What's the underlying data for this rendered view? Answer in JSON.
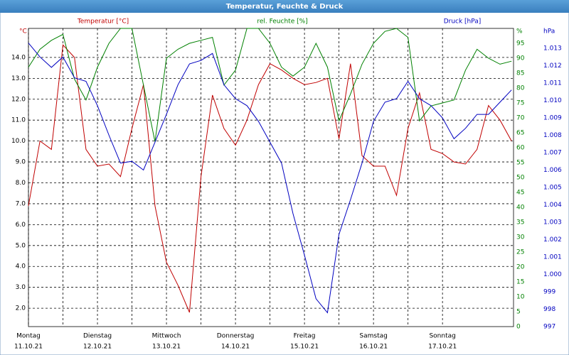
{
  "chart_data": {
    "type": "line",
    "title": "Temperatur, Feuchte & Druck",
    "x": [
      0,
      4,
      8,
      12,
      16,
      20,
      24,
      28,
      32,
      36,
      40,
      44,
      48,
      52,
      56,
      60,
      64,
      68,
      72,
      76,
      80,
      84,
      88,
      92,
      96,
      100,
      104,
      108,
      112,
      116,
      120,
      124,
      128,
      132,
      136,
      140,
      144,
      148,
      152,
      156,
      160,
      164,
      168
    ],
    "xlim": [
      0,
      168.7
    ],
    "xticks": [
      {
        "value": 0,
        "label": "Montag",
        "date": "11.10.21"
      },
      {
        "value": 24,
        "label": "Dienstag",
        "date": "12.10.21"
      },
      {
        "value": 48,
        "label": "Mittwoch",
        "date": "13.10.21"
      },
      {
        "value": 72,
        "label": "Donnerstag",
        "date": "14.10.21"
      },
      {
        "value": 96,
        "label": "Freitag",
        "date": "15.10.21"
      },
      {
        "value": 120,
        "label": "Samstag",
        "date": "16.10.21"
      },
      {
        "value": 144,
        "label": "Sonntag",
        "date": "17.10.21"
      }
    ],
    "series": [
      {
        "name": "Temperatur [°C]",
        "color": "#c00000",
        "axis": "y",
        "values": [
          6.9,
          10.0,
          9.6,
          14.6,
          14.0,
          9.6,
          8.8,
          8.9,
          8.3,
          10.6,
          12.7,
          6.9,
          4.2,
          3.1,
          1.8,
          8.3,
          12.2,
          10.6,
          9.8,
          11.0,
          12.7,
          13.7,
          13.4,
          13.0,
          12.7,
          12.8,
          13.0,
          10.1,
          13.7,
          9.3,
          8.8,
          8.8,
          7.4,
          10.6,
          12.3,
          9.6,
          9.4,
          9.0,
          8.9,
          9.6,
          11.7,
          11.0,
          10.0
        ]
      },
      {
        "name": "rel. Feuchte [%]",
        "color": "#008000",
        "axis": "y2",
        "values": [
          87,
          93,
          96,
          98,
          83,
          76,
          87,
          95,
          100,
          100,
          81,
          62,
          90,
          93,
          95,
          96,
          97,
          81,
          86,
          100,
          100,
          95,
          87,
          84,
          87,
          95,
          87,
          69,
          78,
          88,
          95,
          99,
          100,
          97,
          69,
          74,
          75,
          76,
          86,
          93,
          90,
          88,
          89
        ]
      },
      {
        "name": "Druck [hPa]",
        "color": "#0000c0",
        "axis": "y3",
        "values": [
          1013.3,
          1012.5,
          1011.9,
          1012.5,
          1011.3,
          1011.1,
          1009.7,
          1008.0,
          1006.4,
          1006.5,
          1006.0,
          1007.6,
          1009.2,
          1010.9,
          1012.1,
          1012.3,
          1012.7,
          1010.9,
          1010.1,
          1009.7,
          1008.8,
          1007.6,
          1006.4,
          1003.5,
          1001.1,
          998.6,
          997.8,
          1002.3,
          1004.3,
          1006.4,
          1008.8,
          1009.9,
          1010.1,
          1011.1,
          1010.1,
          1009.7,
          1009.0,
          1007.8,
          1008.4,
          1009.2,
          1009.2,
          1009.9,
          1010.6
        ]
      }
    ],
    "ylabel": "°C",
    "ylim": [
      1.12,
      15.39
    ],
    "yticks": [
      {
        "value": 2,
        "label": "2.0"
      },
      {
        "value": 3,
        "label": "3.0"
      },
      {
        "value": 4,
        "label": "4.0"
      },
      {
        "value": 5,
        "label": "5.0"
      },
      {
        "value": 6,
        "label": "6.0"
      },
      {
        "value": 7,
        "label": "7.0"
      },
      {
        "value": 8,
        "label": "8.0"
      },
      {
        "value": 9,
        "label": "9.0"
      },
      {
        "value": 10,
        "label": "10.0"
      },
      {
        "value": 11,
        "label": "11.0"
      },
      {
        "value": 12,
        "label": "12.0"
      },
      {
        "value": 13,
        "label": "13.0"
      },
      {
        "value": 14,
        "label": "14.0"
      }
    ],
    "y2label": "%",
    "y2lim": [
      0,
      100
    ],
    "y2ticks": [
      0,
      5,
      10,
      15,
      20,
      25,
      30,
      35,
      40,
      45,
      50,
      55,
      60,
      65,
      70,
      75,
      80,
      85,
      90,
      95
    ],
    "y3label": "hPa",
    "y3lim": [
      997,
      1014.14
    ],
    "y3ticks": [
      997,
      998,
      999,
      {
        "value": 1000,
        "label": "1.000"
      },
      {
        "value": 1001,
        "label": "1.001"
      },
      {
        "value": 1002,
        "label": "1.002"
      },
      {
        "value": 1003,
        "label": "1.003"
      },
      {
        "value": 1004,
        "label": "1.004"
      },
      {
        "value": 1005,
        "label": "1.005"
      },
      {
        "value": 1006,
        "label": "1.006"
      },
      {
        "value": 1007,
        "label": "1.007"
      },
      {
        "value": 1008,
        "label": "1.008"
      },
      {
        "value": 1009,
        "label": "1.009"
      },
      {
        "value": 1010,
        "label": "1.010"
      },
      {
        "value": 1011,
        "label": "1.011"
      },
      {
        "value": 1012,
        "label": "1.012"
      },
      {
        "value": 1013,
        "label": "1.013"
      }
    ],
    "grid": true
  }
}
